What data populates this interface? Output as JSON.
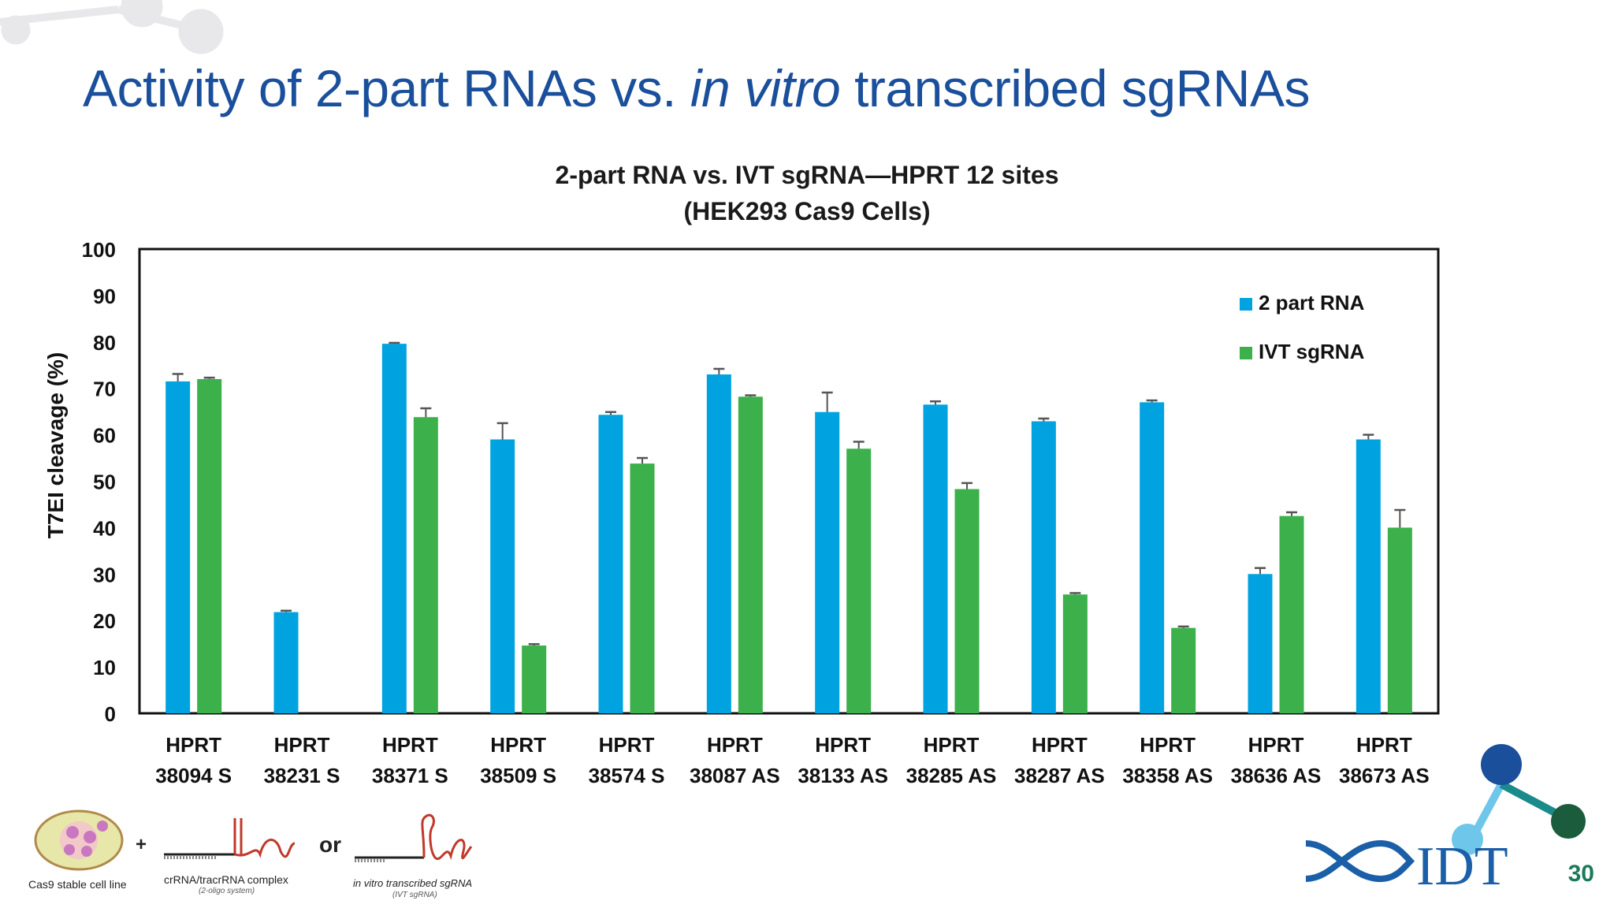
{
  "slide": {
    "title_pre": "Activity of 2-part RNAs vs.",
    "title_italic": "in vitro",
    "title_post": "transcribed sgRNAs",
    "page_number": "30"
  },
  "chart_data": {
    "type": "bar",
    "title": "2-part RNA vs. IVT sgRNA—HPRT 12 sites",
    "subtitle": "(HEK293 Cas9 Cells)",
    "ylabel": "T7EI cleavage (%)",
    "xlabel": "",
    "ylim": [
      0,
      100
    ],
    "yticks": [
      0,
      10,
      20,
      30,
      40,
      50,
      60,
      70,
      80,
      90,
      100
    ],
    "grid": false,
    "legend_position": "top-right",
    "categories": [
      [
        "HPRT",
        "38094 S"
      ],
      [
        "HPRT",
        "38231 S"
      ],
      [
        "HPRT",
        "38371 S"
      ],
      [
        "HPRT",
        "38509 S"
      ],
      [
        "HPRT",
        "38574 S"
      ],
      [
        "HPRT",
        "38087 AS"
      ],
      [
        "HPRT",
        "38133 AS"
      ],
      [
        "HPRT",
        "38285 AS"
      ],
      [
        "HPRT",
        "38287 AS"
      ],
      [
        "HPRT",
        "38358 AS"
      ],
      [
        "HPRT",
        "38636 AS"
      ],
      [
        "HPRT",
        "38673 AS"
      ]
    ],
    "series": [
      {
        "name": "2 part RNA",
        "color": "#00a3e0",
        "values": [
          71.5,
          21.8,
          79.6,
          59.0,
          64.3,
          73.0,
          64.9,
          66.5,
          62.9,
          67.0,
          30.0,
          59.0
        ],
        "errors": [
          1.6,
          0.3,
          0.2,
          3.5,
          0.6,
          1.2,
          4.2,
          0.7,
          0.6,
          0.4,
          1.3,
          1.0
        ]
      },
      {
        "name": "IVT sgRNA",
        "color": "#3cb04a",
        "values": [
          72.0,
          0,
          63.8,
          14.6,
          53.8,
          68.2,
          57.0,
          48.3,
          25.6,
          18.4,
          42.5,
          40.0
        ],
        "errors": [
          0.3,
          0,
          1.9,
          0.3,
          1.2,
          0.3,
          1.5,
          1.3,
          0.3,
          0.3,
          0.8,
          3.8
        ]
      }
    ]
  },
  "footer": {
    "cell_line_label": "Cas9 stable cell line",
    "plus": "+",
    "complex_label": "crRNA/tracrRNA complex",
    "complex_sub": "(2-oligo system)",
    "or": "or",
    "ivt_label": "in vitro transcribed sgRNA",
    "ivt_sub": "(IVT sgRNA)",
    "logo_text": "IDT"
  }
}
